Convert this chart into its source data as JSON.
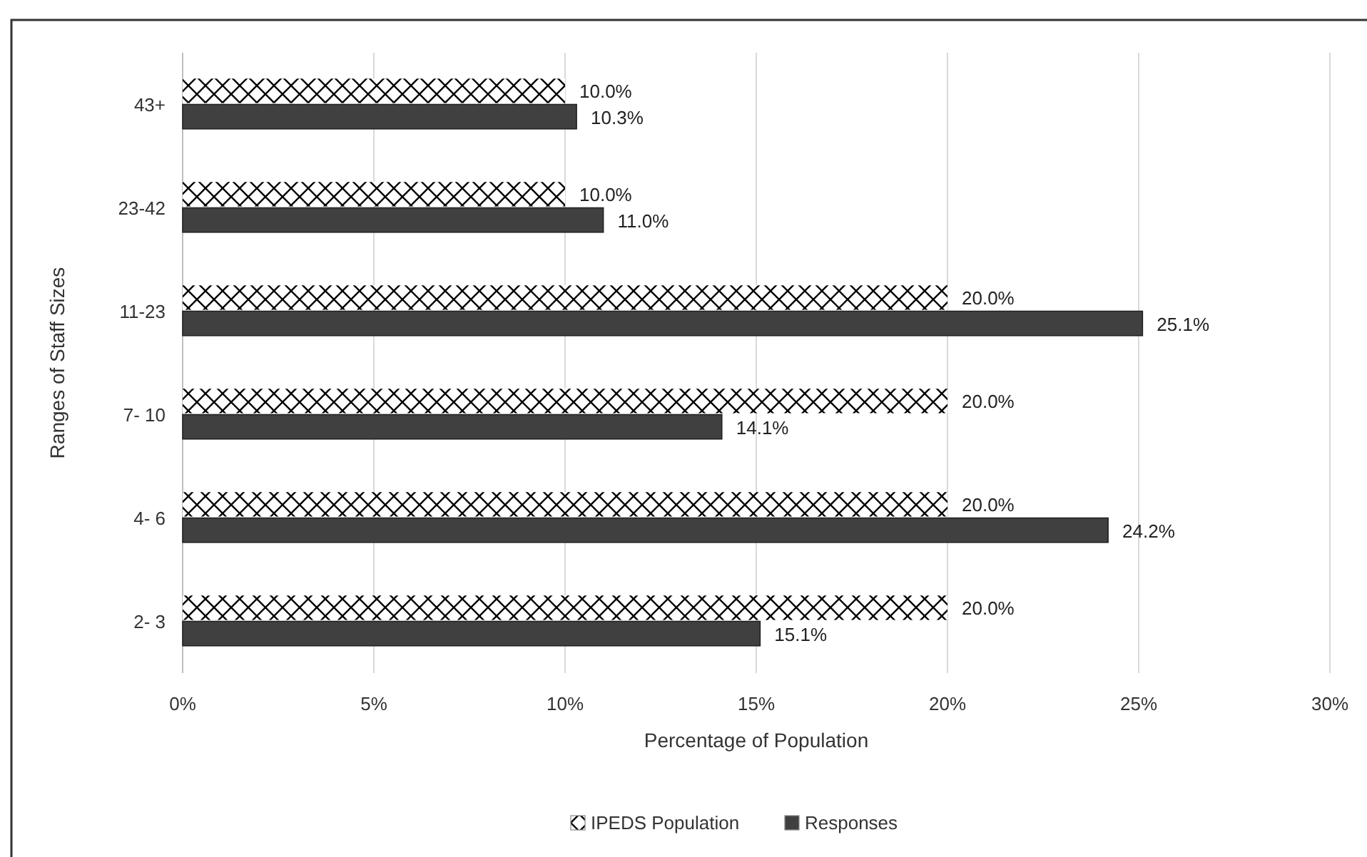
{
  "chart_data": {
    "type": "bar",
    "orientation": "horizontal",
    "xlabel": "Percentage of Population",
    "ylabel": "Ranges of Staff Sizes",
    "categories": [
      "43+",
      "23-42",
      "11-23",
      "7- 10",
      "4- 6",
      "2- 3"
    ],
    "series": [
      {
        "name": "IPEDS Population",
        "color": "#ffffff",
        "values": [
          10.0,
          10.0,
          20.0,
          20.0,
          20.0,
          20.0
        ],
        "value_labels": [
          "10.0%",
          "10.0%",
          "20.0%",
          "20.0%",
          "20.0%",
          "20.0%"
        ]
      },
      {
        "name": "Responses",
        "color": "#404040",
        "values": [
          10.3,
          11.0,
          25.1,
          14.1,
          24.2,
          15.1
        ],
        "value_labels": [
          "10.3%",
          "11.0%",
          "25.1%",
          "14.1%",
          "24.2%",
          "15.1%"
        ]
      }
    ],
    "xlim": [
      0,
      30
    ],
    "xticks": [
      {
        "value": 0,
        "label": "0%"
      },
      {
        "value": 5,
        "label": "5%"
      },
      {
        "value": 10,
        "label": "10%"
      },
      {
        "value": 15,
        "label": "15%"
      },
      {
        "value": 20,
        "label": "20%"
      },
      {
        "value": 25,
        "label": "25%"
      },
      {
        "value": 30,
        "label": "30%"
      }
    ],
    "grid": "x",
    "legend": "bottom"
  }
}
